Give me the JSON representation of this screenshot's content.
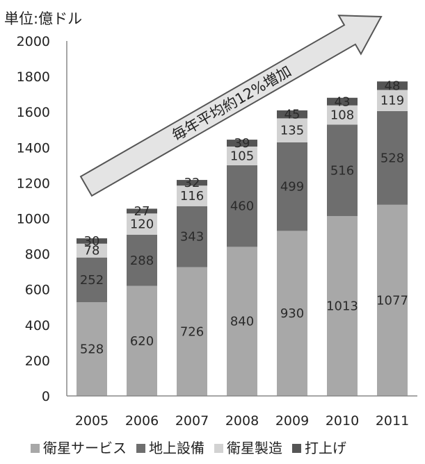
{
  "chart_data": {
    "type": "bar",
    "stacked": true,
    "unit_label": "単位:億ドル",
    "categories": [
      "2005",
      "2006",
      "2007",
      "2008",
      "2009",
      "2010",
      "2011"
    ],
    "series": [
      {
        "name": "衛星サービス",
        "color": "#a8a8a8",
        "values": [
          528,
          620,
          726,
          840,
          930,
          1013,
          1077
        ]
      },
      {
        "name": "地上設備",
        "color": "#6e6e6e",
        "values": [
          252,
          288,
          343,
          460,
          499,
          516,
          528
        ]
      },
      {
        "name": "衛星製造",
        "color": "#d2d2d2",
        "values": [
          78,
          120,
          116,
          105,
          135,
          108,
          119
        ]
      },
      {
        "name": "打上げ",
        "color": "#555555",
        "values": [
          30,
          27,
          32,
          39,
          45,
          43,
          48
        ]
      }
    ],
    "ylim": [
      0,
      2000
    ],
    "yticks": [
      0,
      200,
      400,
      600,
      800,
      1000,
      1200,
      1400,
      1600,
      1800,
      2000
    ],
    "annotation": "毎年平均約12%増加",
    "legend_position": "bottom",
    "grid": false
  }
}
